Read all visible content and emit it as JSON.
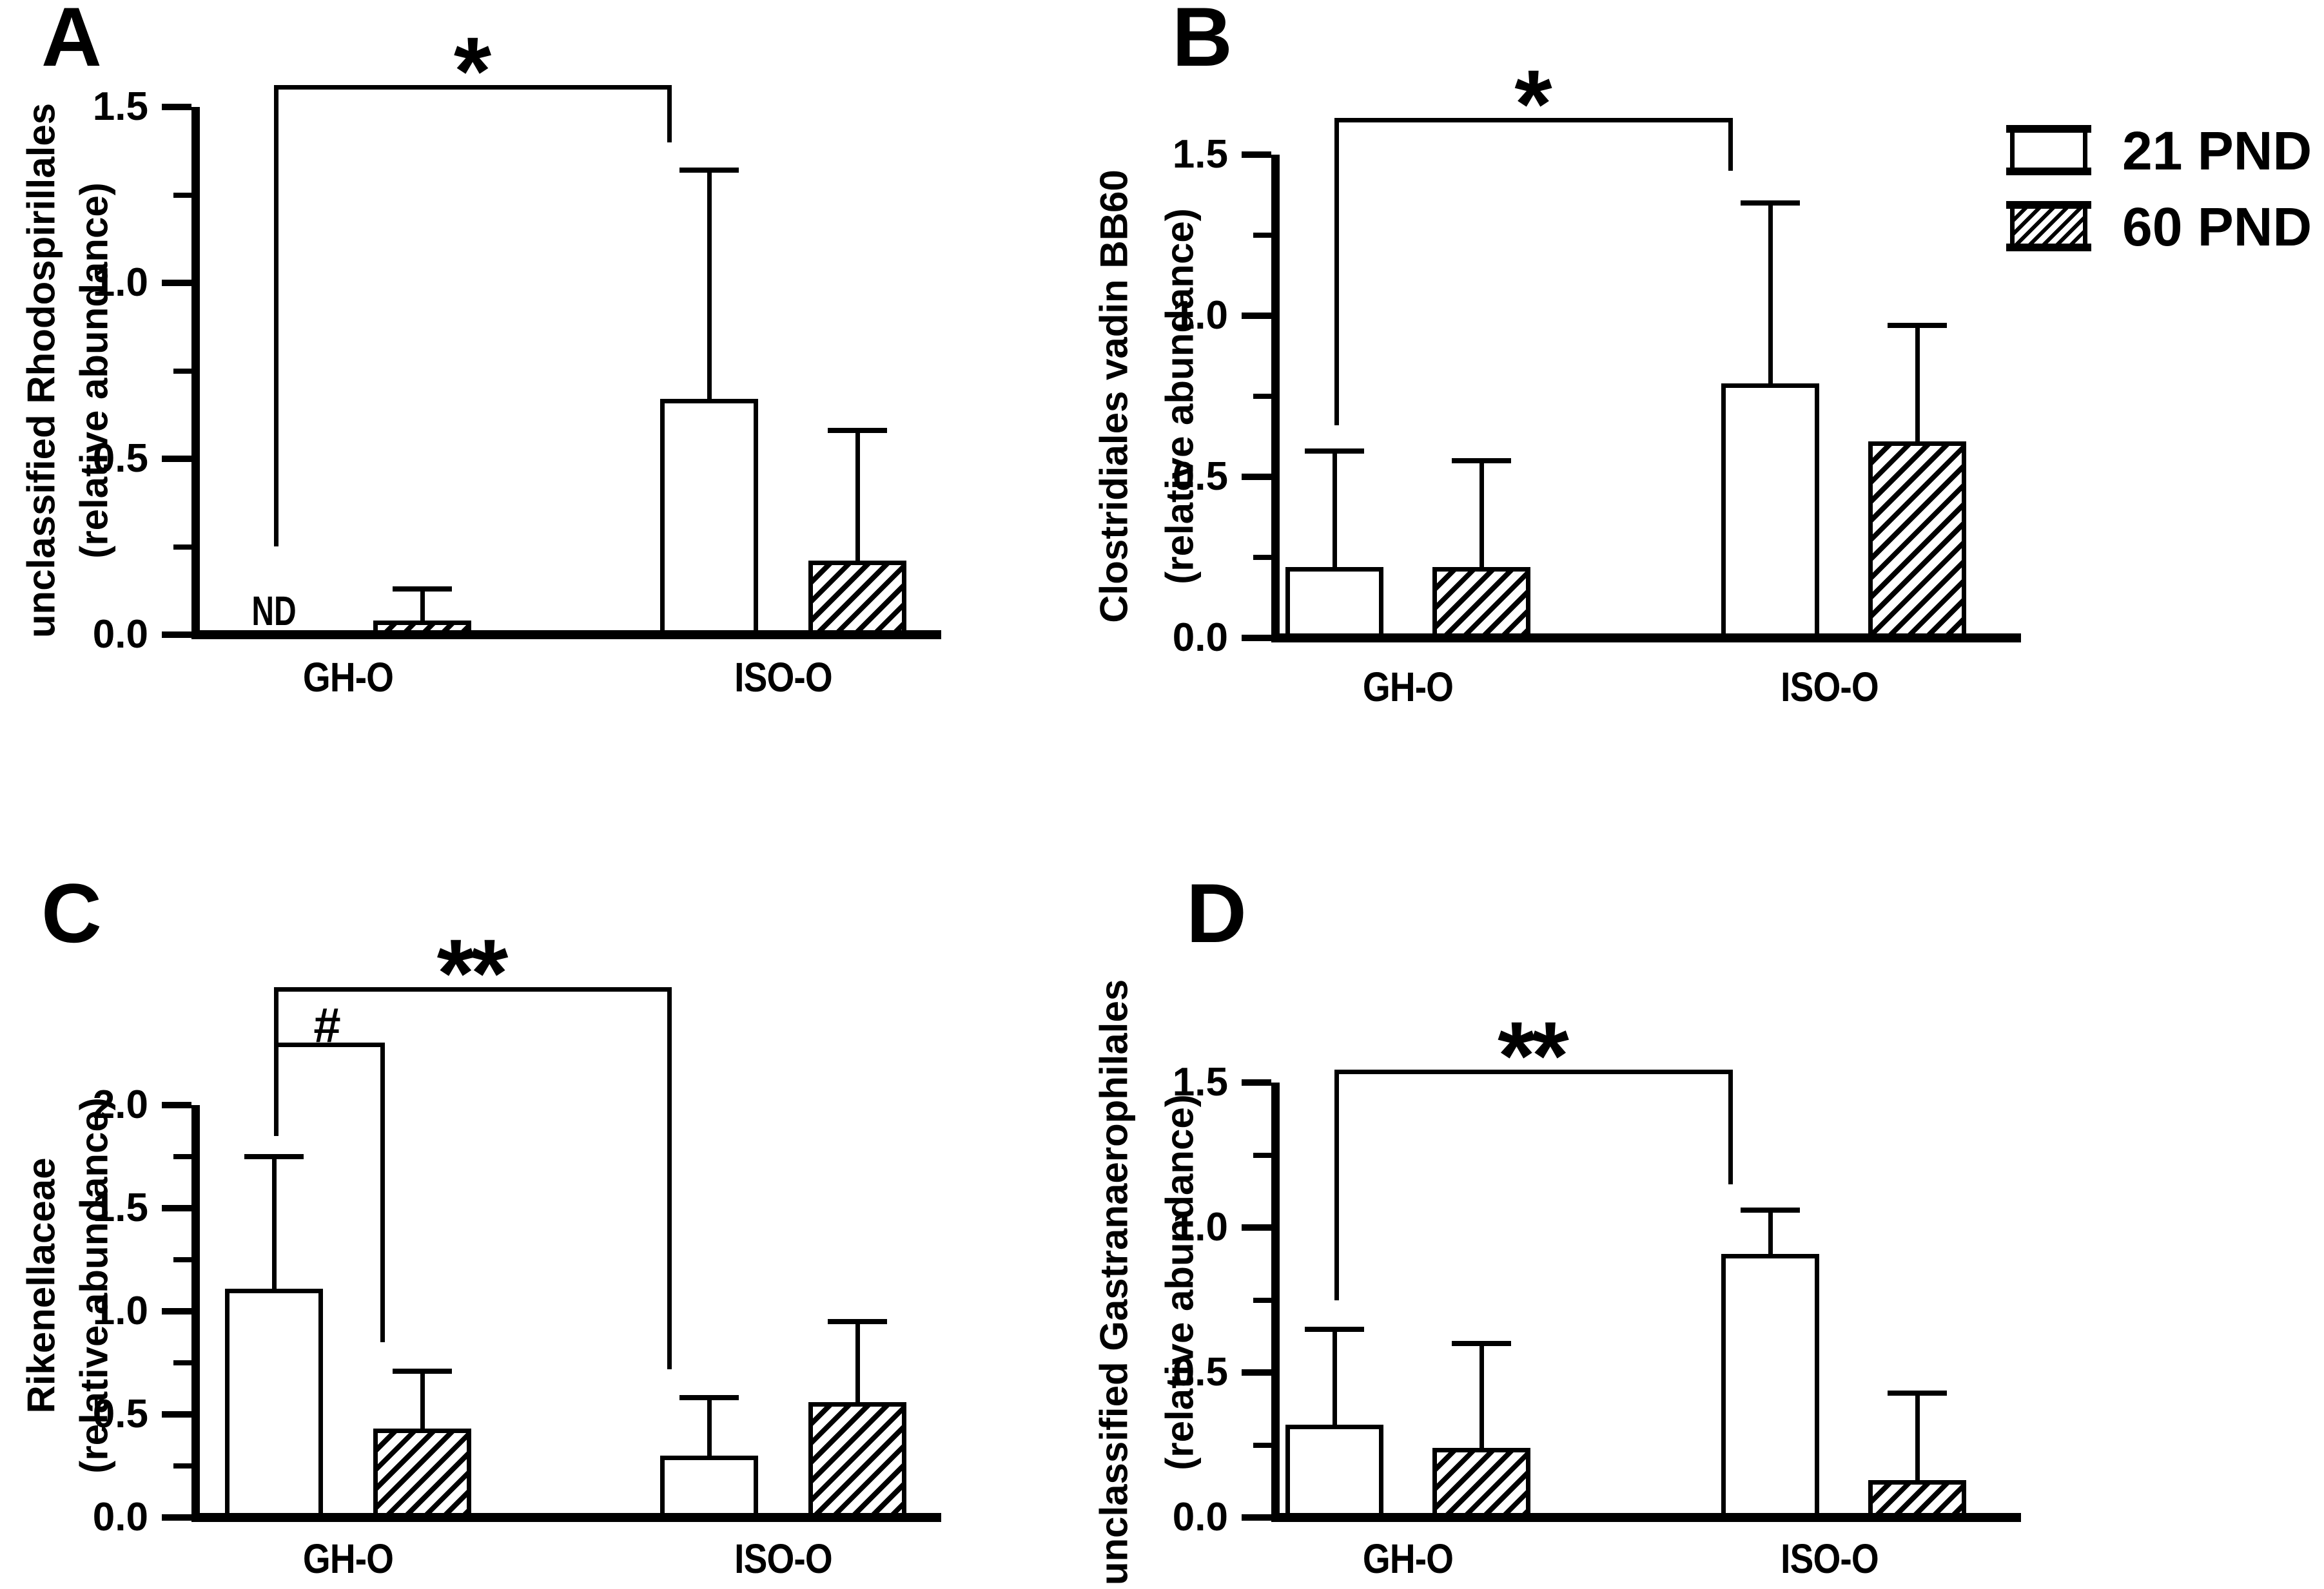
{
  "chart_data": [
    {
      "panel_letter": "A",
      "type": "bar",
      "ylabel_line1": "unclassified Rhodospirillales",
      "ylabel_line2": "(relative abundance)",
      "xlabel": "",
      "categories": [
        "GH-O",
        "ISO-O"
      ],
      "series": [
        {
          "name": "21 PND",
          "pattern": "solid",
          "values": [
            null,
            0.67
          ],
          "error_tops": [
            null,
            1.32
          ],
          "nd_labels": [
            "ND",
            null
          ]
        },
        {
          "name": "60 PND",
          "pattern": "hatched",
          "values": [
            0.04,
            0.21
          ],
          "error_tops": [
            0.13,
            0.58
          ],
          "nd_labels": [
            null,
            null
          ]
        }
      ],
      "ylim": [
        0,
        1.5
      ],
      "ytick_major_step": 0.5,
      "ytick_minor_step": 0.25,
      "ytick_labels": [
        "0.0",
        "0.5",
        "1.0",
        "1.5"
      ],
      "grid": false,
      "annotations": [
        {
          "type": "bracket",
          "label": "*",
          "from": {
            "category": 0,
            "series": 0
          },
          "to": {
            "category": 1,
            "series": 0
          },
          "top": 1.55,
          "left_drop": 0.25,
          "right_drop": 1.4
        }
      ]
    },
    {
      "panel_letter": "B",
      "type": "bar",
      "ylabel_line1": "Clostridiales vadin BB60",
      "ylabel_line2": "(relative abundance)",
      "xlabel": "",
      "categories": [
        "GH-O",
        "ISO-O"
      ],
      "series": [
        {
          "name": "21 PND",
          "pattern": "solid",
          "values": [
            0.22,
            0.79
          ],
          "error_tops": [
            0.58,
            1.35
          ],
          "nd_labels": [
            null,
            null
          ]
        },
        {
          "name": "60 PND",
          "pattern": "hatched",
          "values": [
            0.22,
            0.61
          ],
          "error_tops": [
            0.55,
            0.97
          ],
          "nd_labels": [
            null,
            null
          ]
        }
      ],
      "ylim": [
        0,
        1.5
      ],
      "ytick_major_step": 0.5,
      "ytick_minor_step": 0.25,
      "ytick_labels": [
        "0.0",
        "0.5",
        "1.0",
        "1.5"
      ],
      "grid": false,
      "annotations": [
        {
          "type": "bracket",
          "label": "*",
          "from": {
            "category": 0,
            "series": 0
          },
          "to": {
            "category": 1,
            "series": 0
          },
          "top": 1.6,
          "left_drop": 0.66,
          "right_drop": 1.45
        }
      ]
    },
    {
      "panel_letter": "C",
      "type": "bar",
      "ylabel_line1": "Rikenellaceae",
      "ylabel_line2": "(relative abundance)",
      "xlabel": "",
      "categories": [
        "GH-O",
        "ISO-O"
      ],
      "series": [
        {
          "name": "21 PND",
          "pattern": "solid",
          "values": [
            1.11,
            0.3
          ],
          "error_tops": [
            1.75,
            0.58
          ],
          "nd_labels": [
            null,
            null
          ]
        },
        {
          "name": "60 PND",
          "pattern": "hatched",
          "values": [
            0.43,
            0.56
          ],
          "error_tops": [
            0.71,
            0.95
          ],
          "nd_labels": [
            null,
            null
          ]
        }
      ],
      "ylim": [
        0,
        2.0
      ],
      "ytick_major_step": 0.5,
      "ytick_minor_step": 0.25,
      "ytick_labels": [
        "0.0",
        "0.5",
        "1.0",
        "1.5",
        "2.0"
      ],
      "grid": false,
      "annotations": [
        {
          "type": "bracket",
          "label": "**",
          "from": {
            "category": 0,
            "series": 0
          },
          "to": {
            "category": 1,
            "series": 0
          },
          "top": 2.55,
          "left_drop": 1.85,
          "right_drop": 0.72
        },
        {
          "type": "bracket",
          "label": "#",
          "from": {
            "category": 0,
            "series": 0
          },
          "to": {
            "category": 0,
            "series": 1
          },
          "top": 2.28,
          "left_drop": 1.85,
          "right_drop": 0.85
        }
      ]
    },
    {
      "panel_letter": "D",
      "type": "bar",
      "ylabel_line1": "unclassified Gastranaerophilales",
      "ylabel_line2": "(relative abundance)",
      "xlabel": "",
      "categories": [
        "GH-O",
        "ISO-O"
      ],
      "series": [
        {
          "name": "21 PND",
          "pattern": "solid",
          "values": [
            0.32,
            0.91
          ],
          "error_tops": [
            0.65,
            1.06
          ],
          "nd_labels": [
            null,
            null
          ]
        },
        {
          "name": "60 PND",
          "pattern": "hatched",
          "values": [
            0.24,
            0.13
          ],
          "error_tops": [
            0.6,
            0.43
          ],
          "nd_labels": [
            null,
            null
          ]
        }
      ],
      "ylim": [
        0,
        1.5
      ],
      "ytick_major_step": 0.5,
      "ytick_minor_step": 0.25,
      "ytick_labels": [
        "0.0",
        "0.5",
        "1.0",
        "1.5"
      ],
      "grid": false,
      "annotations": [
        {
          "type": "bracket",
          "label": "**",
          "from": {
            "category": 0,
            "series": 0
          },
          "to": {
            "category": 1,
            "series": 0
          },
          "top": 1.53,
          "left_drop": 0.75,
          "right_drop": 1.15
        }
      ]
    }
  ],
  "legend": {
    "position": "top-right",
    "items": [
      {
        "label": "21 PND",
        "pattern": "solid"
      },
      {
        "label": "60 PND",
        "pattern": "hatched"
      }
    ]
  },
  "colors": {
    "foreground": "#000000",
    "background": "#ffffff"
  }
}
